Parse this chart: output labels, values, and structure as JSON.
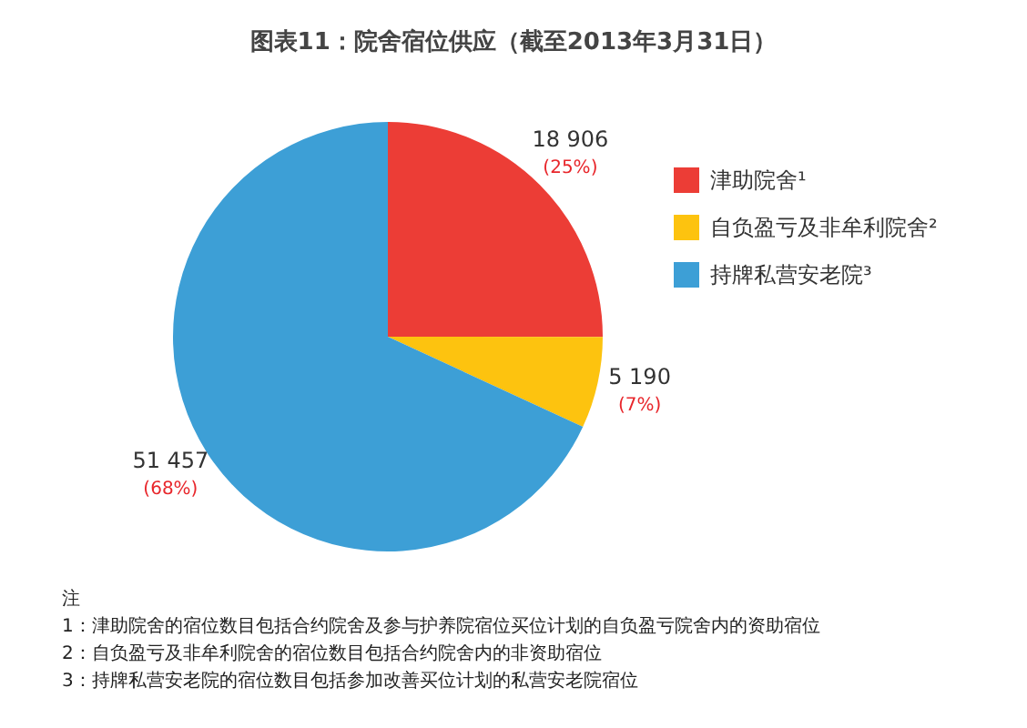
{
  "chart_data": {
    "type": "pie",
    "title": "图表11：院舍宿位供应（截至2013年3月31日）",
    "categories": [
      "津助院舍¹",
      "自负盈亏及非牟利院舍²",
      "持牌私营安老院³"
    ],
    "values": [
      18906,
      5190,
      51457
    ],
    "colors": [
      "#ec3d36",
      "#fdc30f",
      "#3d9fd6"
    ],
    "value_labels": [
      "18 906\n(25%)",
      "5 190\n(7%)",
      "51 457\n(68%)"
    ],
    "legend": "right",
    "annotations": [
      "注",
      "1：津助院舍的宿位数目包括合约院舍及参与护养院宿位买位计划的自负盈亏院舍内的资助宿位",
      "2：自负盈亏及非牟利院舍的宿位数目包括合约院舍内的非资助宿位",
      "3：持牌私营安老院的宿位数目包括参加改善买位计划的私营安老院宿位"
    ]
  }
}
